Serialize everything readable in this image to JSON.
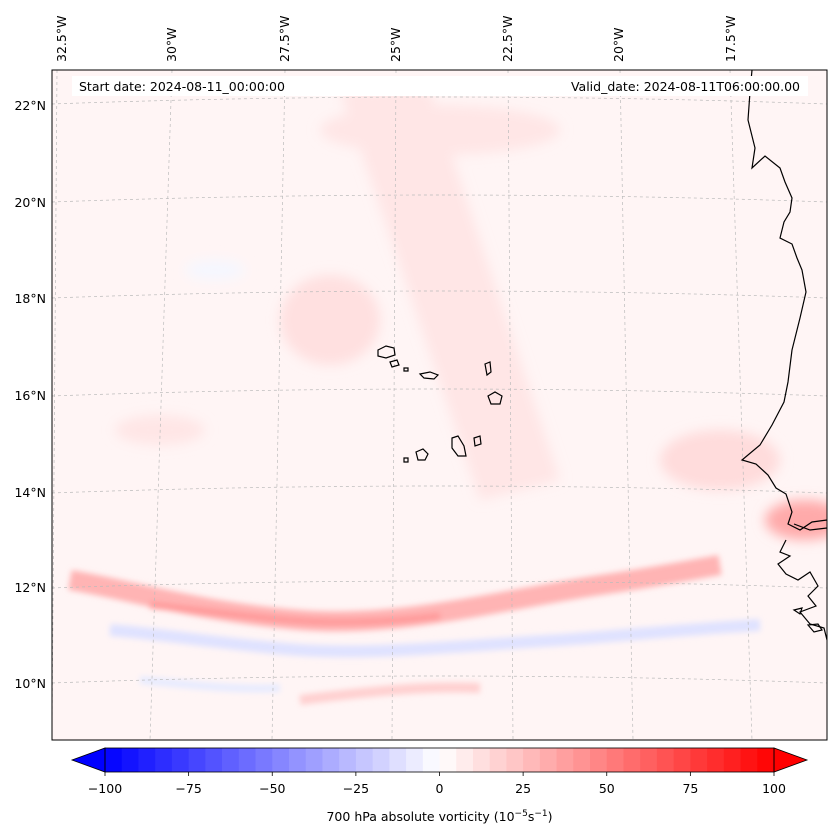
{
  "map": {
    "header": {
      "start_date": "Start date: 2024-08-11_00:00:00",
      "valid_date": "Valid_date: 2024-08-11T06:00:00.00"
    },
    "lon_labels": [
      "32.5°W",
      "30°W",
      "27.5°W",
      "25°W",
      "22.5°W",
      "20°W",
      "17.5°W"
    ],
    "lat_labels": [
      "22°N",
      "20°N",
      "18°N",
      "16°N",
      "14°N",
      "12°N",
      "10°N"
    ],
    "features": [
      "Cape Verde islands",
      "West African coastline"
    ],
    "gridlines": true,
    "colors": {
      "negative": "#0000ff",
      "zero": "#ffffff",
      "positive": "#ff0000",
      "coastline": "#000000"
    }
  },
  "colorbar": {
    "label": "700 hPa absolute vorticity (10",
    "label_exp1": "−5",
    "label_mid": "s",
    "label_exp2": "−1",
    "label_end": ")",
    "tick_labels": [
      "−100",
      "−75",
      "−50",
      "−25",
      "0",
      "25",
      "50",
      "75",
      "100"
    ],
    "ticks": [
      -100,
      -75,
      -50,
      -25,
      0,
      25,
      50,
      75,
      100
    ],
    "range": [
      -100,
      100
    ],
    "colormap": "bwr",
    "extend": "both"
  }
}
